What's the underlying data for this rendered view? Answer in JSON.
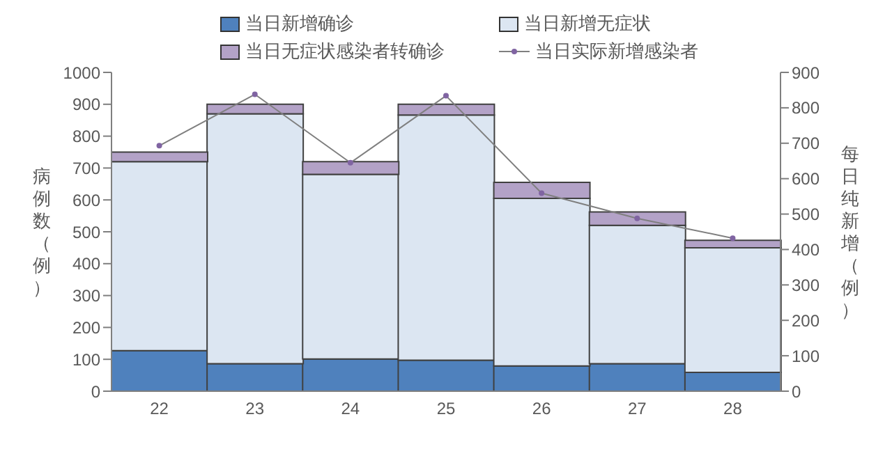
{
  "chart_data": {
    "type": "bar",
    "stacked": true,
    "categories": [
      "22",
      "23",
      "24",
      "25",
      "26",
      "27",
      "28"
    ],
    "series": [
      {
        "name": "当日新增确诊",
        "color": "#4f81bd",
        "values": [
          127,
          86,
          101,
          97,
          79,
          86,
          59
        ]
      },
      {
        "name": "当日新增无症状",
        "color": "#dce6f2",
        "values": [
          593,
          784,
          579,
          769,
          526,
          434,
          391
        ]
      },
      {
        "name": "当日无症状感染者转确诊",
        "color": "#b3a2c7",
        "values": [
          30,
          30,
          40,
          34,
          50,
          42,
          23
        ]
      },
      {
        "name": "当日实际新增感染者",
        "type": "line",
        "axis": "y2",
        "color": "#7f7f7f",
        "marker": "circle",
        "values": [
          693,
          838,
          645,
          834,
          559,
          488,
          432
        ]
      }
    ],
    "ylabel": "病例数（例）",
    "y2label": "每日纯新增（例）",
    "ylim": [
      0,
      1000
    ],
    "yticks": [
      0,
      100,
      200,
      300,
      400,
      500,
      600,
      700,
      800,
      900,
      1000
    ],
    "y2lim": [
      0,
      900
    ],
    "y2ticks": [
      0,
      100,
      200,
      300,
      400,
      500,
      600,
      700,
      800,
      900
    ],
    "legend": "top"
  }
}
